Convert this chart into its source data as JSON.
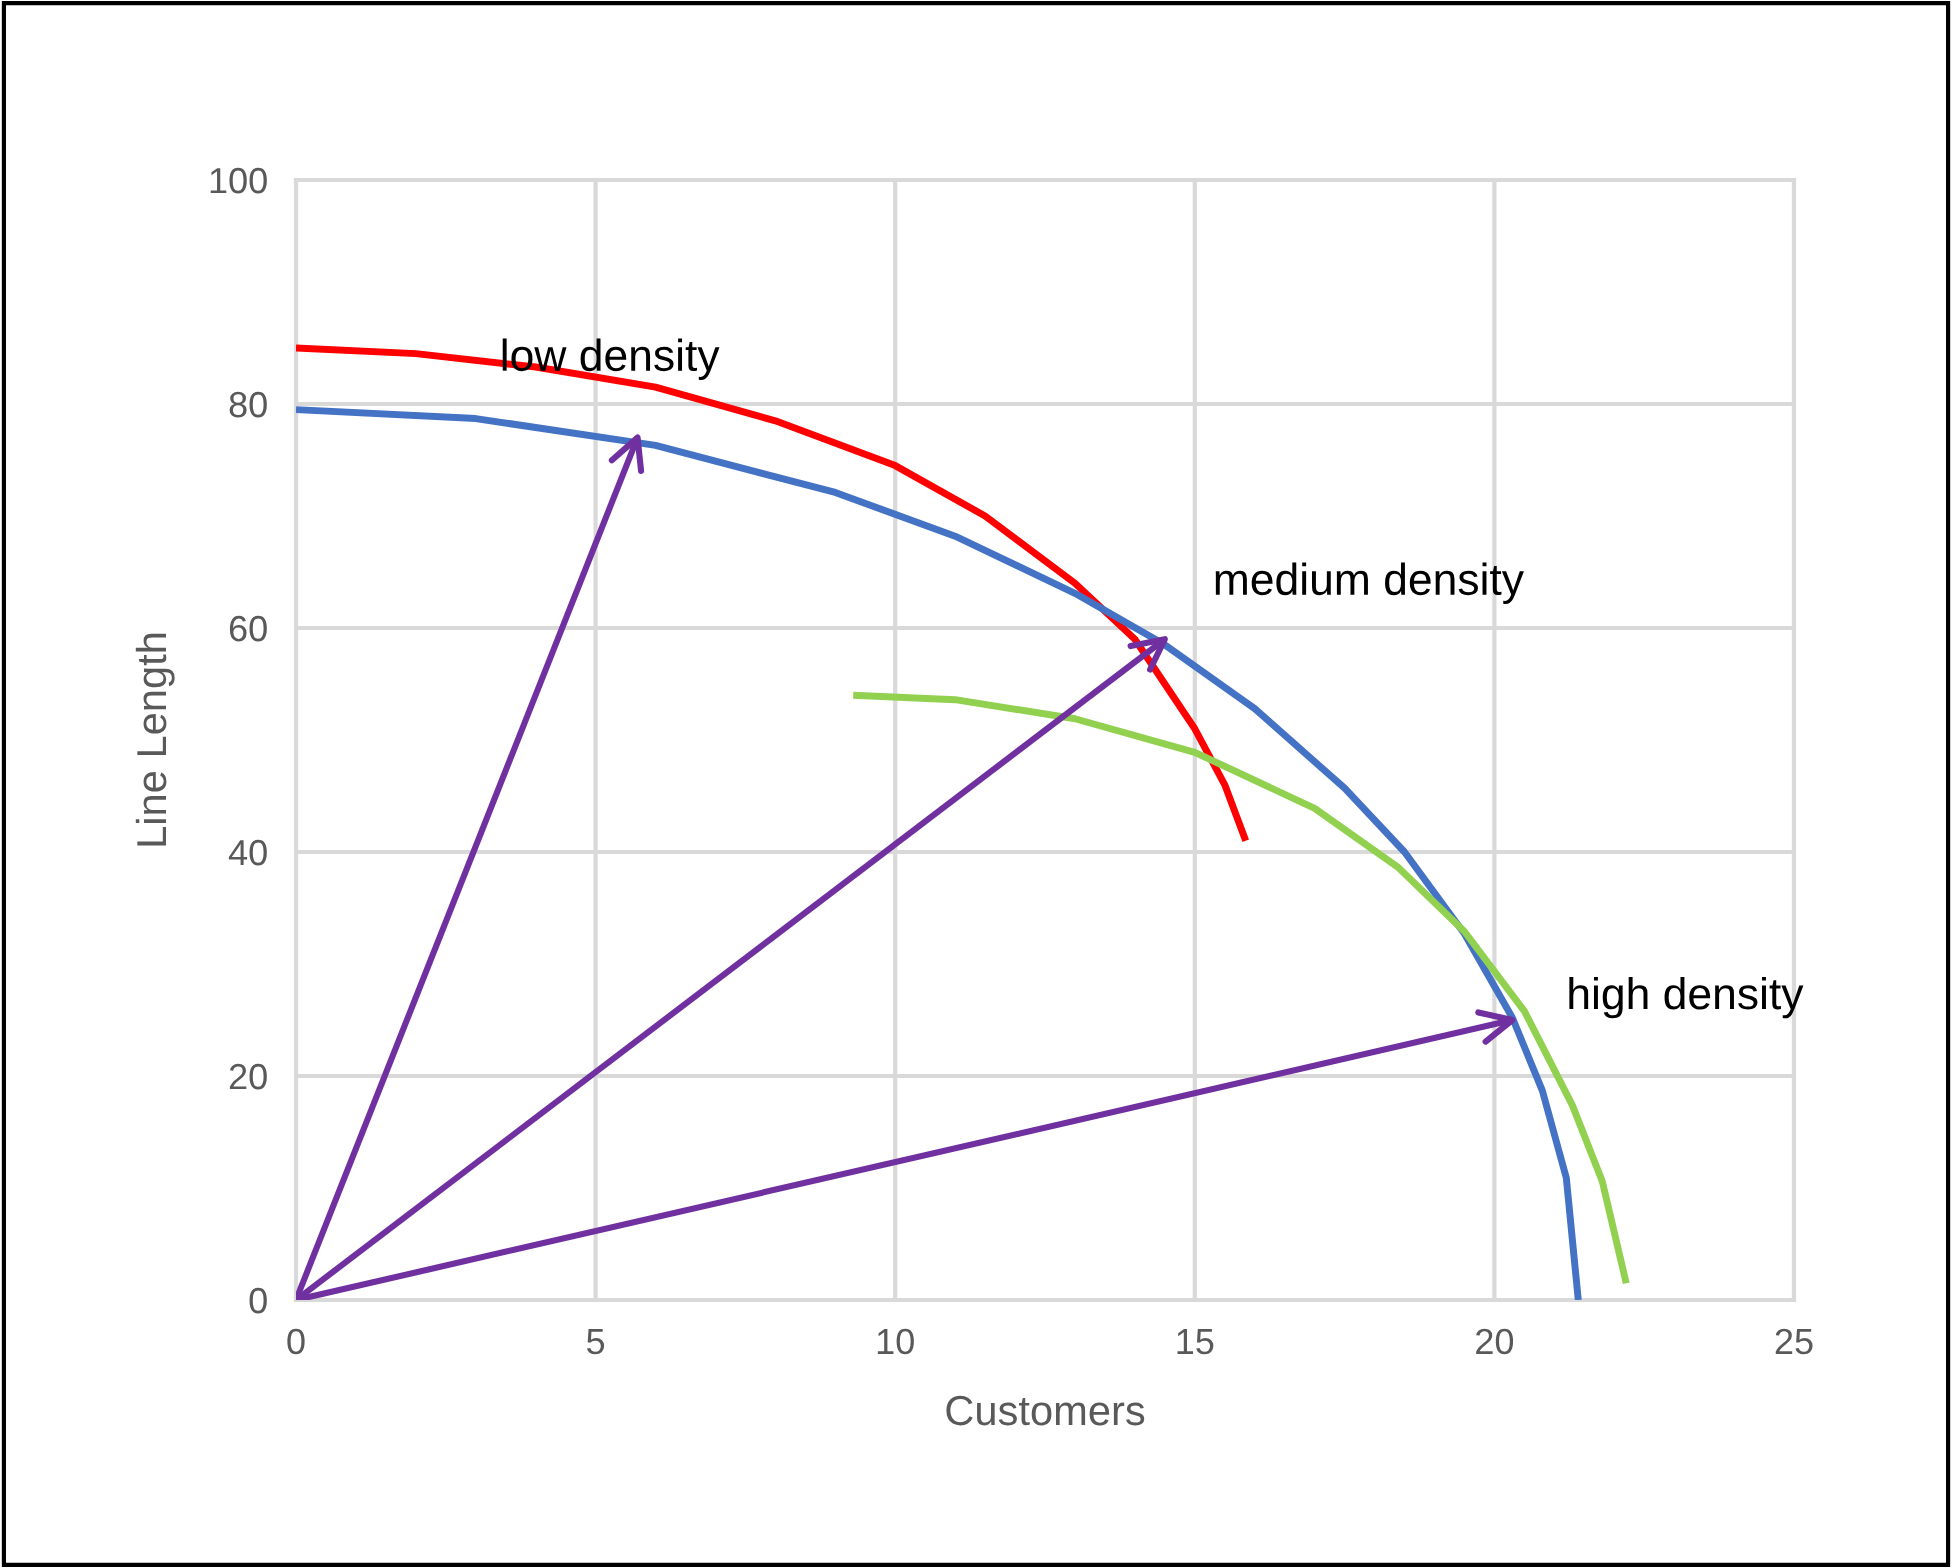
{
  "chart_data": {
    "type": "line",
    "xlabel": "Customers",
    "ylabel": "Line Length",
    "xlim": [
      0,
      25
    ],
    "xticks": [
      0,
      5,
      10,
      15,
      20,
      25
    ],
    "ylim": [
      0,
      100
    ],
    "yticks": [
      0,
      20,
      40,
      60,
      80,
      100
    ],
    "grid": true,
    "legend": false,
    "marker": "none",
    "line_style": "solid",
    "series": [
      {
        "color": "#ff0000",
        "x": [
          0,
          2,
          4,
          6,
          8,
          10,
          11.5,
          13,
          14,
          15,
          15.5,
          15.85
        ],
        "values": [
          85,
          84.5,
          83.3,
          81.5,
          78.5,
          74.5,
          70,
          64,
          59,
          51,
          46,
          41
        ]
      },
      {
        "color": "#4472c4",
        "x": [
          0,
          3,
          6,
          9,
          11,
          13,
          14.5,
          16,
          17.5,
          18.5,
          19.5,
          20.3,
          20.8,
          21.2,
          21.4
        ],
        "values": [
          79.5,
          78.7,
          76.3,
          72.1,
          68.2,
          63.1,
          58.5,
          52.8,
          45.7,
          40,
          32.7,
          25.2,
          18.7,
          10.9,
          0
        ]
      },
      {
        "color": "#92d050",
        "x": [
          9.3,
          11,
          13,
          15,
          17,
          18.4,
          19.5,
          20.5,
          21.3,
          21.8,
          22.2
        ],
        "values": [
          54,
          53.6,
          51.9,
          48.9,
          43.9,
          38.6,
          32.9,
          25.8,
          17.4,
          10.6,
          1.5
        ]
      },
      {
        "color": "#7030a0",
        "x": [
          0,
          5.7
        ],
        "values": [
          0,
          77
        ]
      },
      {
        "color": "#7030a0",
        "x": [
          0,
          14.5
        ],
        "values": [
          0,
          59
        ]
      },
      {
        "color": "#7030a0",
        "x": [
          0,
          20.3
        ],
        "values": [
          0,
          25
        ]
      }
    ],
    "annotations": [
      {
        "text": "low density",
        "x": 3.4,
        "y": 84
      },
      "medium density",
      "high density"
    ]
  }
}
